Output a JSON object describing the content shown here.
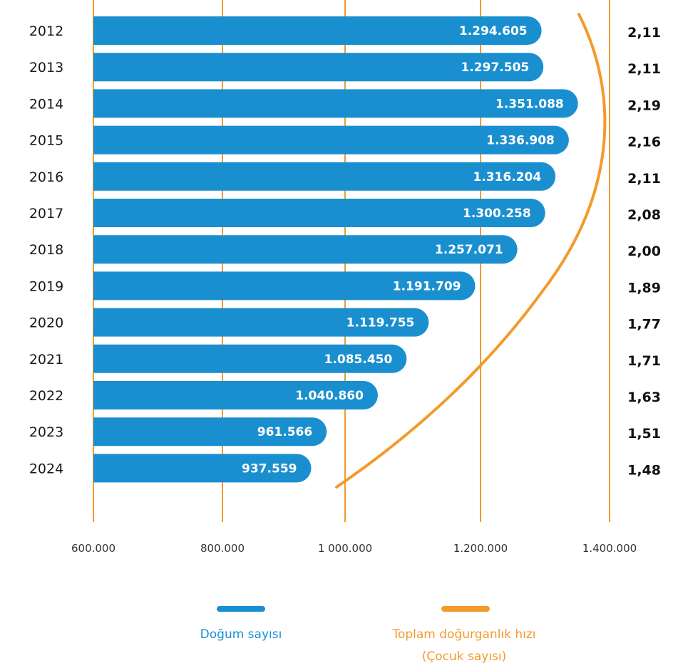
{
  "colors": {
    "bar": "#1a8fd0",
    "curve": "#f39a2a",
    "grid": "#f39a2a"
  },
  "chart_data": {
    "type": "bar",
    "orientation": "horizontal",
    "categories": [
      "2012",
      "2013",
      "2014",
      "2015",
      "2016",
      "2017",
      "2018",
      "2019",
      "2020",
      "2021",
      "2022",
      "2023",
      "2024"
    ],
    "series": [
      {
        "name": "Doğum sayısı",
        "values": [
          1294605,
          1297505,
          1351088,
          1336908,
          1316204,
          1300258,
          1257071,
          1191709,
          1119755,
          1085450,
          1040860,
          961566,
          937559
        ],
        "labels": [
          "1.294.605",
          "1.297.505",
          "1.351.088",
          "1.336.908",
          "1.316.204",
          "1.300.258",
          "1.257.071",
          "1.191.709",
          "1.119.755",
          "1.085.450",
          "1.040.860",
          "961.566",
          "937.559"
        ]
      },
      {
        "name": "Toplam doğurganlık hızı (Çocuk sayısı)",
        "values": [
          2.11,
          2.11,
          2.19,
          2.16,
          2.11,
          2.08,
          2.0,
          1.89,
          1.77,
          1.71,
          1.63,
          1.51,
          1.48
        ],
        "labels": [
          "2,11",
          "2,11",
          "2,19",
          "2,16",
          "2,11",
          "2,08",
          "2,00",
          "1,89",
          "1,77",
          "1,71",
          "1,63",
          "1,51",
          "1,48"
        ]
      }
    ],
    "xlim": [
      600000,
      1400000
    ],
    "xticks": [
      600000,
      800000,
      1000000,
      1200000,
      1400000
    ],
    "xtick_labels": [
      "600.000",
      "800.000",
      "1 000.000",
      "1.200.000",
      "1.400.000"
    ],
    "grid": true,
    "legend_position": "bottom",
    "legend": [
      {
        "label": "Doğum sayısı",
        "color": "#1a8fd0"
      },
      {
        "label": "Toplam doğurganlık hızı",
        "label2": "(Çocuk sayısı)",
        "color": "#f39a2a"
      }
    ]
  }
}
